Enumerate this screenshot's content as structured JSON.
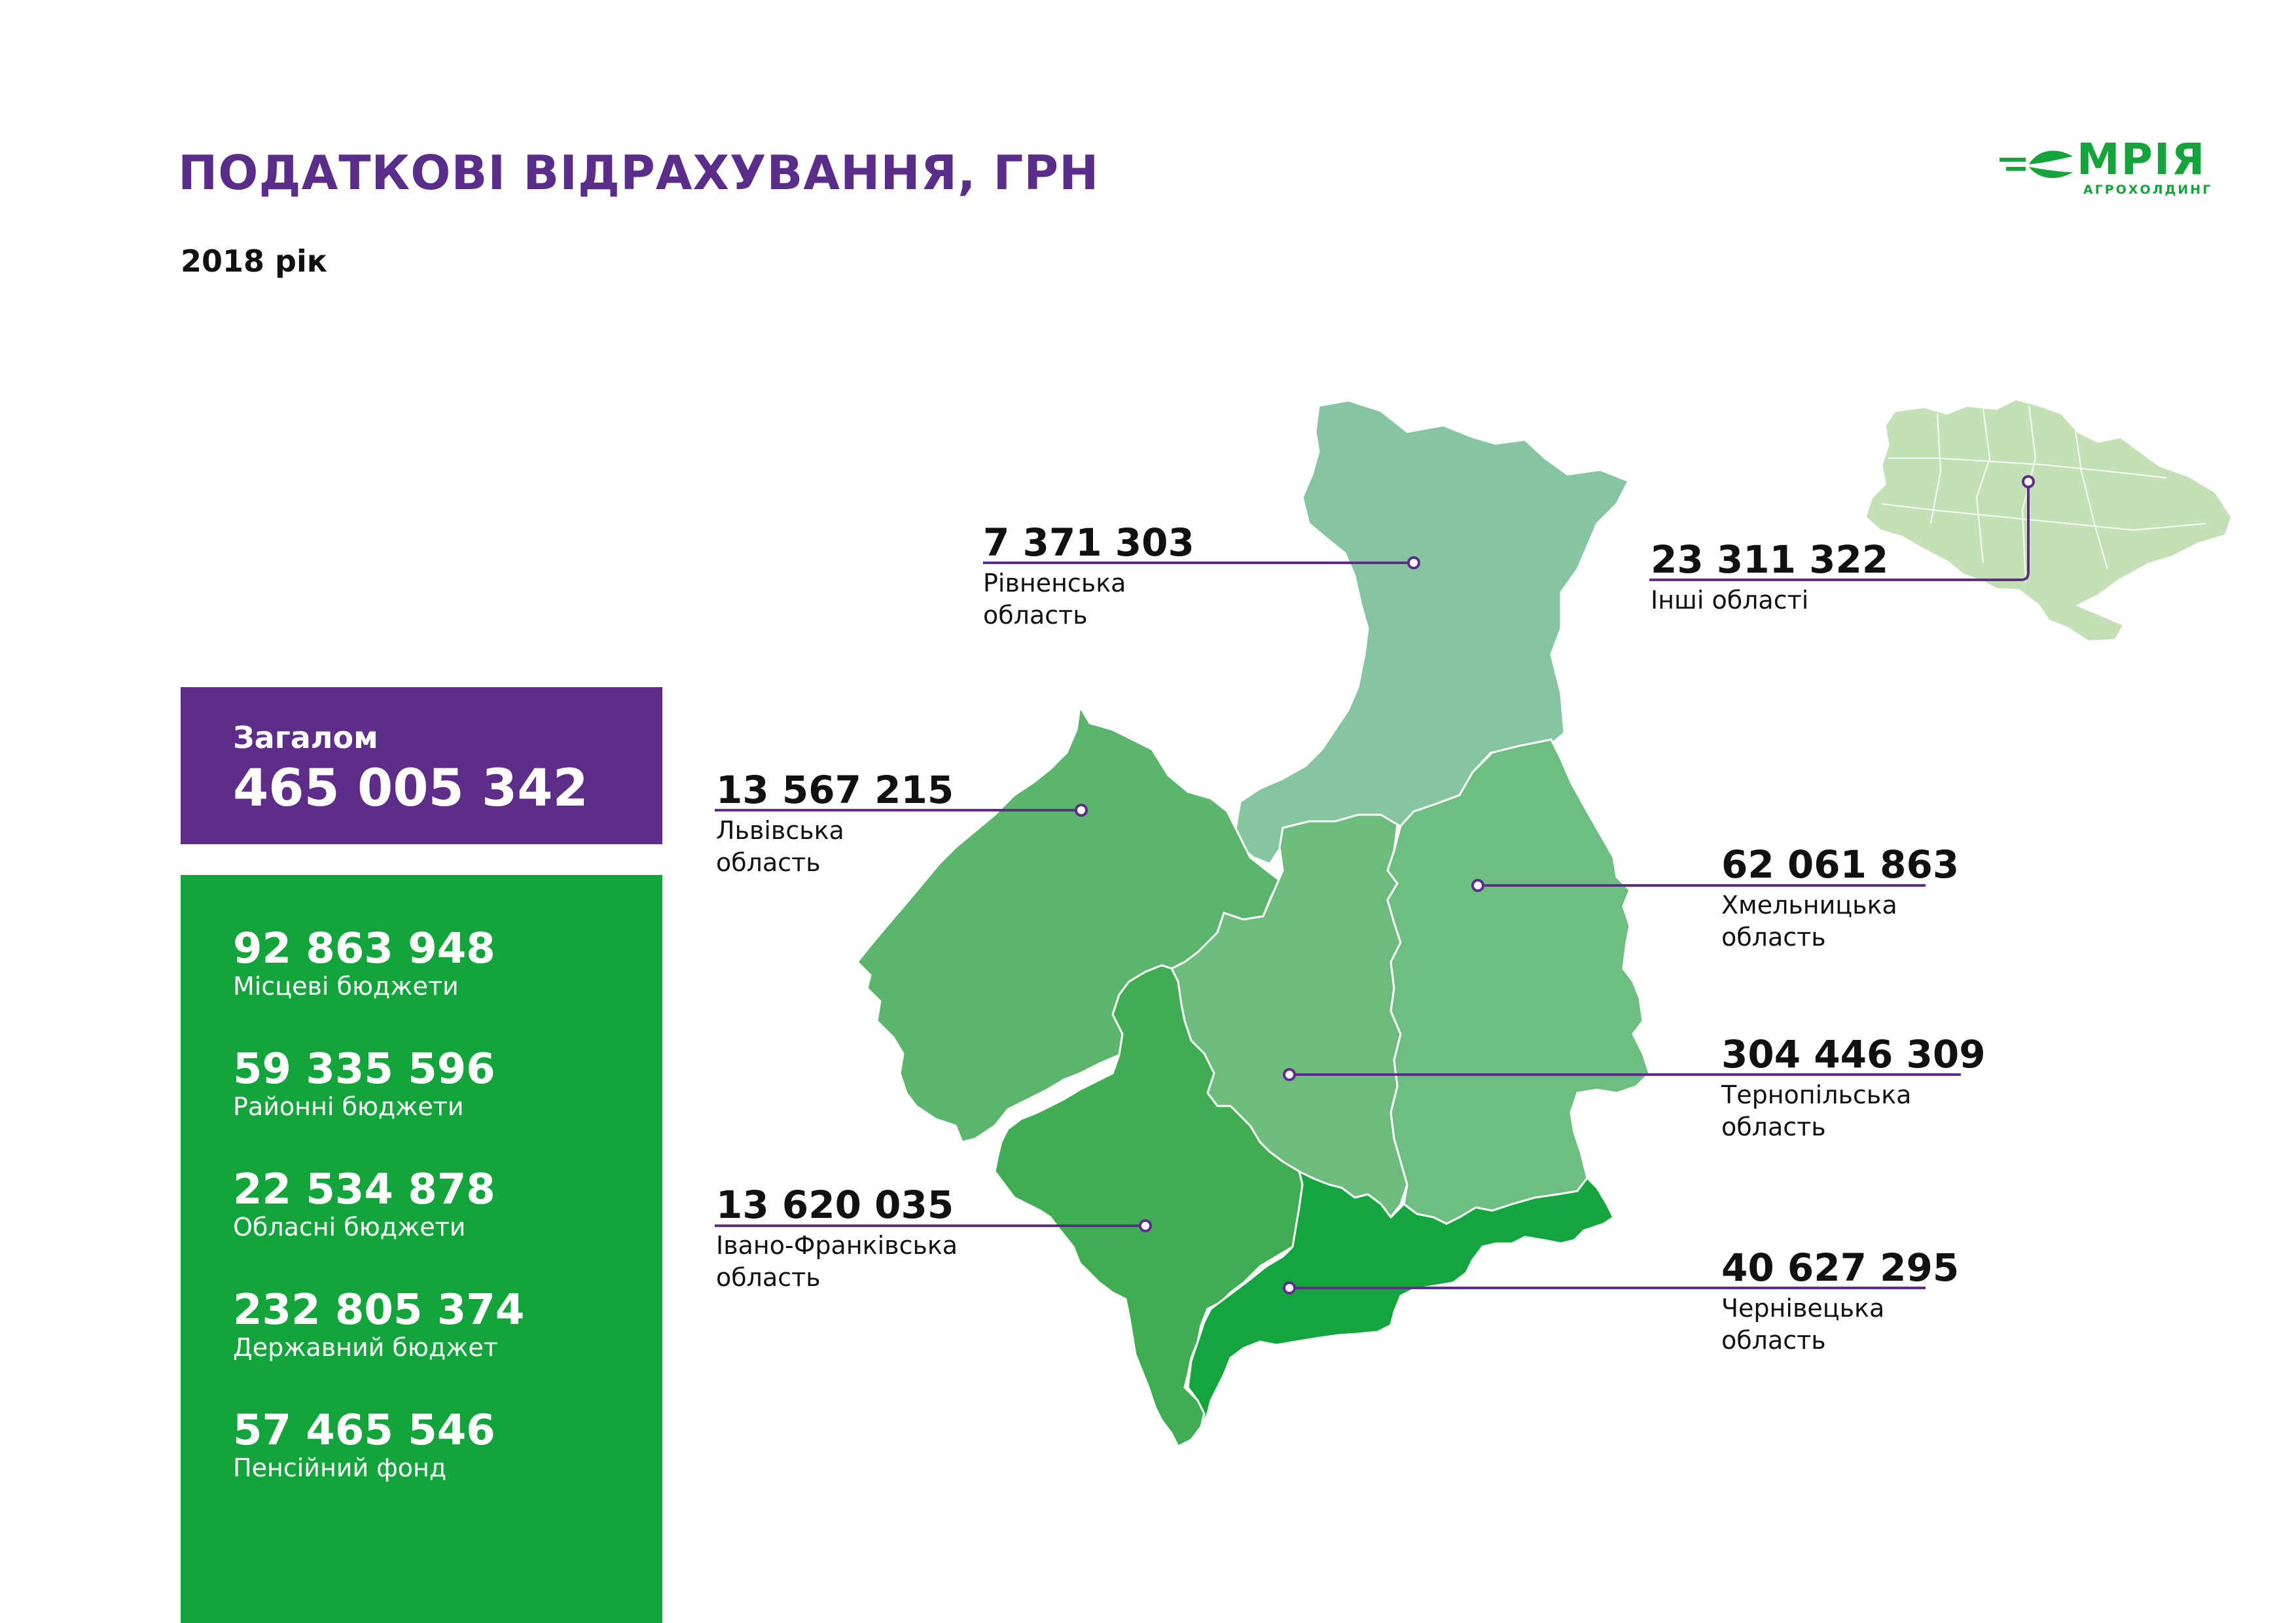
{
  "header": {
    "title": "ПОДАТКОВІ ВІДРАХУВАННЯ, ГРН",
    "year": "2018 рік"
  },
  "logo": {
    "name": "МРІЯ",
    "subtitle": "АГРОХОЛДИНГ"
  },
  "total": {
    "label": "Загалом",
    "value": "465 005 342"
  },
  "budgets": [
    {
      "value": "92 863 948",
      "label": "Місцеві бюджети"
    },
    {
      "value": "59 335 596",
      "label": "Районні бюджети"
    },
    {
      "value": "22 534 878",
      "label": "Обласні бюджети"
    },
    {
      "value": "232 805 374",
      "label": "Державний бюджет"
    },
    {
      "value": "57 465 546",
      "label": "Пенсійний фонд"
    }
  ],
  "regions": [
    {
      "value": "7 371 303",
      "name": "Рівненська область"
    },
    {
      "value": "23 311 322",
      "name": "Інші області"
    },
    {
      "value": "13 567 215",
      "name": "Львівська область"
    },
    {
      "value": "62 061 863",
      "name": "Хмельницька область"
    },
    {
      "value": "304 446 309",
      "name": "Тернопільська область"
    },
    {
      "value": "13 620 035",
      "name": "Івано-Франківська область"
    },
    {
      "value": "40 627 295",
      "name": "Чернівецька область"
    }
  ],
  "colors": {
    "title": "#5b2d8a",
    "total_box": "#5e2d8a",
    "budget_box": "#13a43c",
    "leader_line": "#5e2d8a",
    "rivne": "#85c6a0",
    "lviv": "#5cb56c",
    "khmelnytskyi": "#6ebd81",
    "ternopil": "#6dbb7d",
    "ivano_frankivsk": "#41ad52",
    "chernivtsi": "#14a53f",
    "ukraine_inset": "#c3e0b7"
  },
  "icons": {
    "logo_mark": "wheat-arrow-icon",
    "marker": "circle-marker-icon"
  }
}
